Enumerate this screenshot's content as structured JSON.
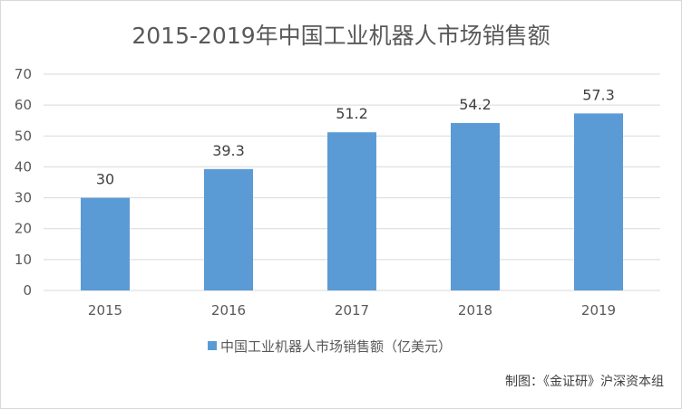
{
  "chart_data": {
    "type": "bar",
    "title": "2015-2019年中国工业机器人市场销售额",
    "categories": [
      "2015",
      "2016",
      "2017",
      "2018",
      "2019"
    ],
    "series": [
      {
        "name": "中国工业机器人市场销售额（亿美元）",
        "values": [
          30,
          39.3,
          51.2,
          54.2,
          57.3
        ]
      }
    ],
    "data_labels": [
      "30",
      "39.3",
      "51.2",
      "54.2",
      "57.3"
    ],
    "ylim": [
      0,
      70
    ],
    "yticks": [
      0,
      10,
      20,
      30,
      40,
      50,
      60,
      70
    ],
    "grid": true,
    "legend_position": "bottom",
    "bar_color": "#5b9bd5",
    "grid_color": "#d9d9d9"
  },
  "source_note": "制图：《金证研》沪深资本组"
}
